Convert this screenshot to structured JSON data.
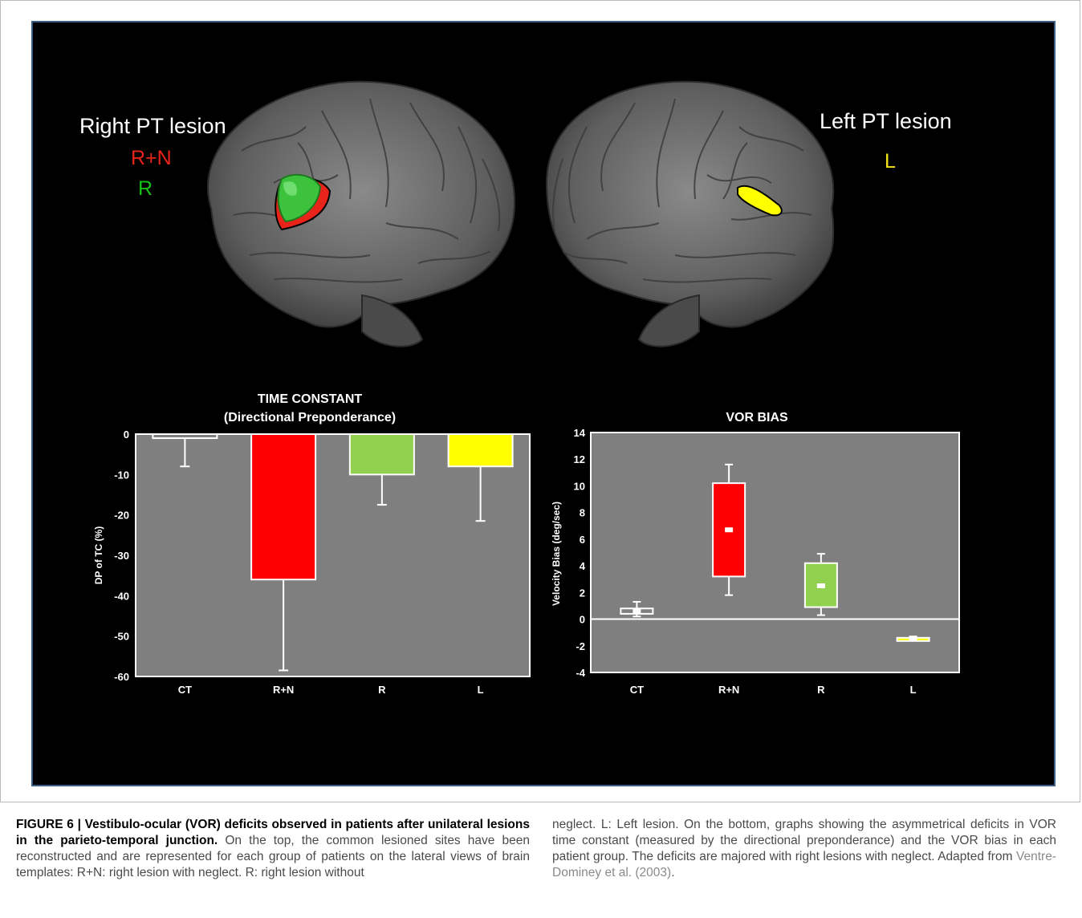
{
  "brain_figure": {
    "left_label": {
      "title": "Right PT lesion",
      "groups": [
        {
          "label": "R+N",
          "color": "#e8231a"
        },
        {
          "label": "R",
          "color": "#17c217"
        }
      ]
    },
    "right_label": {
      "title": "Left PT lesion",
      "groups": [
        {
          "label": "L",
          "color": "#f5e61a"
        }
      ]
    }
  },
  "chart_data": [
    {
      "type": "bar",
      "title": "TIME CONSTANT",
      "subtitle": "(Directional Preponderance)",
      "ylabel": "DP of TC (%)",
      "xlabel": "",
      "categories": [
        "CT",
        "R+N",
        "R",
        "L"
      ],
      "values": [
        -1,
        -36,
        -10,
        -8
      ],
      "error_low": [
        -8,
        -58.5,
        -17.5,
        -21.5
      ],
      "colors": [
        "#7f7f7f",
        "#ff0000",
        "#92d050",
        "#ffff00"
      ],
      "ylim": [
        -60,
        0
      ],
      "yticks": [
        "0",
        "-10",
        "-20",
        "-30",
        "-40",
        "-50",
        "-60"
      ],
      "grid": false
    },
    {
      "type": "box",
      "title": "VOR BIAS",
      "ylabel": "Velocity Bias (deg/sec)",
      "xlabel": "",
      "categories": [
        "CT",
        "R+N",
        "R",
        "L"
      ],
      "boxes": [
        {
          "whisker_low": 0.2,
          "q1": 0.4,
          "median": 0.6,
          "q3": 0.8,
          "whisker_high": 1.3,
          "color": "#7f7f7f"
        },
        {
          "whisker_low": 1.8,
          "q1": 3.2,
          "median": 6.7,
          "q3": 10.2,
          "whisker_high": 11.6,
          "color": "#ff0000"
        },
        {
          "whisker_low": 0.3,
          "q1": 0.9,
          "median": 2.5,
          "q3": 4.2,
          "whisker_high": 4.9,
          "color": "#92d050"
        },
        {
          "whisker_low": -1.6,
          "q1": -1.6,
          "median": -1.5,
          "q3": -1.4,
          "whisker_high": -1.3,
          "color": "#ffff00"
        }
      ],
      "ylim": [
        -4,
        14
      ],
      "yticks": [
        "14",
        "12",
        "10",
        "8",
        "6",
        "4",
        "2",
        "0",
        "-2",
        "-4"
      ],
      "grid": false
    }
  ],
  "caption": {
    "heading": "FIGURE 6 | Vestibulo-ocular (VOR) deficits observed in patients after unilateral lesions in the parieto-temporal junction.",
    "left_text": "On the top, the common lesioned sites have been reconstructed and are represented for each group of patients on the lateral views of brain templates: R+N: right lesion with neglect. R: right lesion without",
    "right_text": "neglect. L: Left lesion. On the bottom, graphs showing the asymmetrical deficits in VOR time constant (measured by the directional preponderance) and the VOR bias in each patient group. The deficits are majored with right lesions with neglect. Adapted from",
    "citation": "Ventre-Dominey et al. (2003)",
    "end": "."
  }
}
